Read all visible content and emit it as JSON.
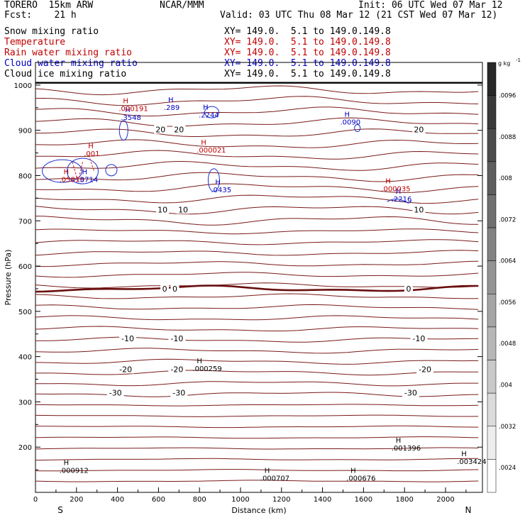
{
  "header": {
    "model": "TORERO  15km ARW",
    "org": "NCAR/MMM",
    "init": "Init: 06 UTC Wed 07 Mar 12",
    "fcst": "Fcst:    21 h",
    "valid": "Valid: 03 UTC Thu 08 Mar 12 (21 CST Wed 07 Mar 12)"
  },
  "legend": [
    {
      "name": "Snow mixing ratio",
      "xy": "XY= 149.0.  5.1 to 149.0.149.8",
      "color": "#000000"
    },
    {
      "name": "Temperature",
      "xy": "XY= 149.0.  5.1 to 149.0.149.8",
      "color": "#c00000"
    },
    {
      "name": "Rain water mixing ratio",
      "xy": "XY= 149.0.  5.1 to 149.0.149.8",
      "color": "#c00000"
    },
    {
      "name": "Cloud water mixing ratio",
      "xy": "XY= 149.0.  5.1 to 149.0.149.8",
      "color": "#0000c0"
    },
    {
      "name": "Cloud ice mixing ratio",
      "xy": "XY= 149.0.  5.1 to 149.0.149.8",
      "color": "#000000"
    }
  ],
  "chart_data": {
    "type": "cross-section contour",
    "xlabel": "Distance (km)",
    "ylabel": "Pressure (hPa)",
    "xlim": [
      0,
      2180
    ],
    "ylim": [
      1050,
      100
    ],
    "xticks": [
      0,
      200,
      400,
      600,
      800,
      1000,
      1200,
      1400,
      1600,
      1800,
      2000
    ],
    "yticks": [
      200,
      300,
      400,
      500,
      600,
      700,
      800,
      900,
      1000
    ],
    "ends": {
      "left": "S",
      "right": "N"
    },
    "isotherms": [
      {
        "label": "-30",
        "p": 320,
        "labels_x": [
          390,
          700,
          1830
        ]
      },
      {
        "label": "-20",
        "p": 372,
        "labels_x": [
          440,
          690,
          1900
        ]
      },
      {
        "label": "-10",
        "p": 440,
        "labels_x": [
          450,
          690,
          1870
        ]
      },
      {
        "label": "0",
        "p": 550,
        "labels_x": [
          630,
          680,
          1820
        ],
        "bold": true
      },
      {
        "label": "10",
        "p": 725,
        "labels_x": [
          620,
          720,
          1870
        ]
      },
      {
        "label": "20",
        "p": 902,
        "labels_x": [
          610,
          700,
          1870
        ]
      }
    ],
    "extrema": [
      {
        "type": "H",
        "value": ".000912",
        "x": 130,
        "p": 160,
        "color": "#000000"
      },
      {
        "type": "H",
        "value": ".000707",
        "x": 1110,
        "p": 143,
        "color": "#000000"
      },
      {
        "type": "H",
        "value": ".000676",
        "x": 1530,
        "p": 143,
        "color": "#000000"
      },
      {
        "type": "H",
        "value": ".003424",
        "x": 2070,
        "p": 180,
        "color": "#000000"
      },
      {
        "type": "H",
        "value": ".001396",
        "x": 1750,
        "p": 210,
        "color": "#000000"
      },
      {
        "type": "H",
        "value": ".000259",
        "x": 780,
        "p": 385,
        "color": "#000000"
      },
      {
        "type": "H",
        "value": ".2216",
        "x": 1750,
        "p": 760,
        "color": "#0000c0"
      },
      {
        "type": "H",
        "value": ".000035",
        "x": 1700,
        "p": 783,
        "color": "#c00000"
      },
      {
        "type": "H",
        "value": ".0435",
        "x": 870,
        "p": 780,
        "color": "#0000c0"
      },
      {
        "type": "H",
        "value": ".05813",
        "x": 130,
        "p": 803,
        "color": "#c00000"
      },
      {
        "type": "H",
        "value": ".0714",
        "x": 220,
        "p": 803,
        "color": "#0000c0"
      },
      {
        "type": "H",
        "value": ".001",
        "x": 250,
        "p": 860,
        "color": "#c00000"
      },
      {
        "type": "H",
        "value": ".000021",
        "x": 800,
        "p": 868,
        "color": "#c00000"
      },
      {
        "type": "H",
        "value": ".3548",
        "x": 430,
        "p": 940,
        "color": "#0000c0"
      },
      {
        "type": "H",
        "value": ".000191",
        "x": 420,
        "p": 960,
        "color": "#c00000"
      },
      {
        "type": "H",
        "value": ".289",
        "x": 640,
        "p": 962,
        "color": "#0000c0"
      },
      {
        "type": "H",
        "value": ".2244",
        "x": 810,
        "p": 946,
        "color": "#0000c0"
      },
      {
        "type": "H",
        "value": ".0090",
        "x": 1500,
        "p": 930,
        "color": "#0000c0"
      }
    ],
    "colorbar": {
      "unit": "g kg",
      "unit_exp": "-1",
      "tick_labels": [
        ".0096",
        ".0088",
        ".008",
        ".0072",
        ".0064",
        ".0056",
        ".0048",
        ".004",
        ".0032",
        ".0024"
      ]
    }
  }
}
